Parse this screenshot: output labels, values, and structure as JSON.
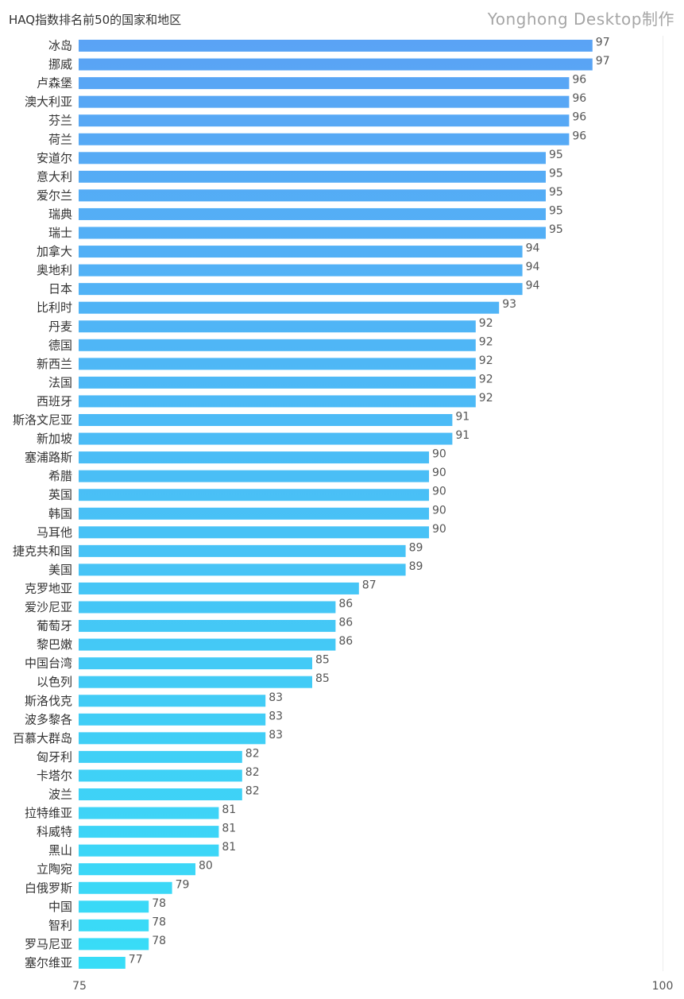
{
  "header": {
    "title": "HAQ指数排名前50的国家和地区",
    "watermark": "Yonghong Desktop制作"
  },
  "chart_data": {
    "type": "bar",
    "orientation": "horizontal",
    "title": "HAQ指数排名前50的国家和地区",
    "xlabel": "",
    "ylabel": "",
    "xlim": [
      75,
      100
    ],
    "x_ticks": [
      "75",
      "100"
    ],
    "grid": false,
    "legend": "none",
    "bar_color_top": "#5aa3f5",
    "bar_color_bottom": "#38ddf7",
    "categories": [
      "冰岛",
      "挪威",
      "卢森堡",
      "澳大利亚",
      "芬兰",
      "荷兰",
      "安道尔",
      "意大利",
      "爱尔兰",
      "瑞典",
      "瑞士",
      "加拿大",
      "奥地利",
      "日本",
      "比利时",
      "丹麦",
      "德国",
      "新西兰",
      "法国",
      "西班牙",
      "斯洛文尼亚",
      "新加坡",
      "塞浦路斯",
      "希腊",
      "英国",
      "韩国",
      "马耳他",
      "捷克共和国",
      "美国",
      "克罗地亚",
      "爱沙尼亚",
      "葡萄牙",
      "黎巴嫩",
      "中国台湾",
      "以色列",
      "斯洛伐克",
      "波多黎各",
      "百慕大群岛",
      "匈牙利",
      "卡塔尔",
      "波兰",
      "拉特维亚",
      "科威特",
      "黑山",
      "立陶宛",
      "白俄罗斯",
      "中国",
      "智利",
      "罗马尼亚",
      "塞尔维亚"
    ],
    "values": [
      97,
      97,
      96,
      96,
      96,
      96,
      95,
      95,
      95,
      95,
      95,
      94,
      94,
      94,
      93,
      92,
      92,
      92,
      92,
      92,
      91,
      91,
      90,
      90,
      90,
      90,
      90,
      89,
      89,
      87,
      86,
      86,
      86,
      85,
      85,
      83,
      83,
      83,
      82,
      82,
      82,
      81,
      81,
      81,
      80,
      79,
      78,
      78,
      78,
      77
    ]
  }
}
